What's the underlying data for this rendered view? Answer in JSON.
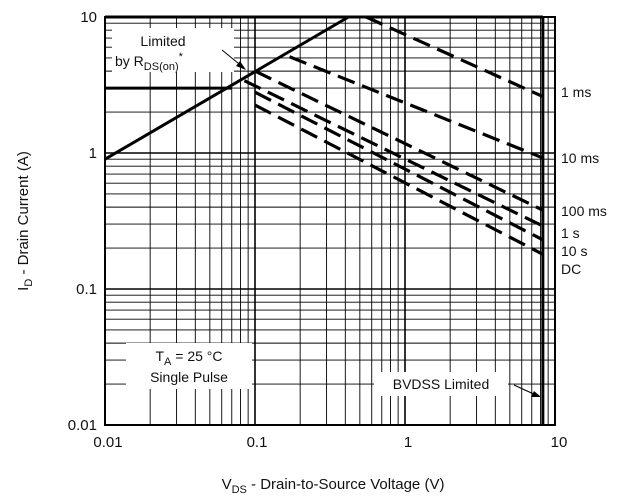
{
  "chart_data": {
    "type": "line",
    "title": "",
    "xscale": "log",
    "yscale": "log",
    "xlim": [
      0.01,
      10
    ],
    "ylim": [
      0.01,
      10
    ],
    "grid": true,
    "x_ticks": [
      "0.01",
      "0.1",
      "1",
      "10"
    ],
    "y_ticks": [
      "0.01",
      "0.1",
      "1",
      "10"
    ],
    "xlabel": {
      "main": "V",
      "sub": "DS",
      "rest": " - Drain-to-Source Voltage (V)"
    },
    "ylabel": {
      "main": "I",
      "sub": "D",
      "rest": " - Drain Current (A)"
    },
    "limit_lines": [
      {
        "name": "R_DS(on) limit",
        "x": [
          0.01,
          0.42
        ],
        "y": [
          0.9,
          10
        ]
      },
      {
        "name": "current limit upper",
        "x": [
          0.01,
          8.3
        ],
        "y": [
          10,
          10
        ]
      },
      {
        "name": "current limit lower",
        "x": [
          0.01,
          0.07
        ],
        "y": [
          3,
          3
        ]
      },
      {
        "name": "BVDSS limit",
        "x": [
          8.3,
          8.3
        ],
        "y": [
          0.01,
          10
        ]
      }
    ],
    "series": [
      {
        "name": "1 ms",
        "x": [
          0.55,
          8.3
        ],
        "y": [
          10,
          2.6
        ]
      },
      {
        "name": "10 ms",
        "x": [
          0.17,
          8.3
        ],
        "y": [
          5.1,
          0.92
        ]
      },
      {
        "name": "100 ms",
        "x": [
          0.1,
          8.3
        ],
        "y": [
          4.0,
          0.38
        ]
      },
      {
        "name": "1 s",
        "x": [
          0.085,
          8.3
        ],
        "y": [
          3.4,
          0.29
        ]
      },
      {
        "name": "10 s",
        "x": [
          0.1,
          8.3
        ],
        "y": [
          2.8,
          0.23
        ]
      },
      {
        "name": "DC",
        "x": [
          0.1,
          8.3
        ],
        "y": [
          2.25,
          0.18
        ]
      }
    ],
    "annotations": {
      "limited_line1": "Limited",
      "limited_line2_main": "by R",
      "limited_line2_sub": "DS(on)",
      "limited_line2_sup": "*",
      "ta_main": "T",
      "ta_sub": "A",
      "ta_rest": " = 25 °C",
      "single_pulse": "Single Pulse",
      "bvdss": "BVDSS Limited"
    }
  }
}
